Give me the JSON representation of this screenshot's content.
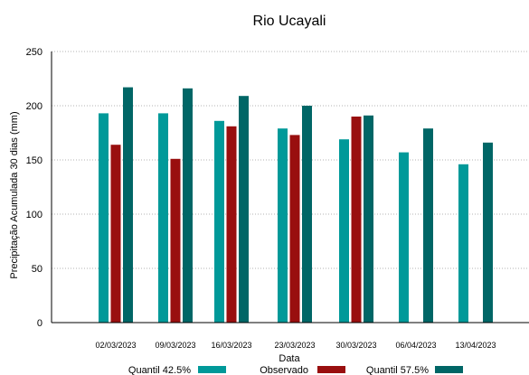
{
  "chart_data": {
    "type": "bar",
    "title": "Rio Ucayali",
    "xlabel": "Data",
    "ylabel": "Precipitação Acumulada 30 dias (mm)",
    "ylim": [
      0,
      250
    ],
    "yticks": [
      0,
      50,
      100,
      150,
      200,
      250
    ],
    "grid": true,
    "legend_position": "bottom",
    "categories": [
      "02/03/2023",
      "09/03/2023",
      "16/03/2023",
      "23/03/2023",
      "30/03/2023",
      "06/04/2023",
      "13/04/2023"
    ],
    "series": [
      {
        "name": "Quantil 42.5%",
        "color": "#009999",
        "values": [
          193,
          193,
          186,
          179,
          169,
          157,
          146
        ]
      },
      {
        "name": "Observado",
        "color": "#990f0f",
        "values": [
          164,
          151,
          181,
          173,
          190,
          null,
          null
        ]
      },
      {
        "name": "Quantil 57.5%",
        "color": "#006666",
        "values": [
          217,
          216,
          209,
          200,
          191,
          179,
          166
        ]
      }
    ]
  }
}
